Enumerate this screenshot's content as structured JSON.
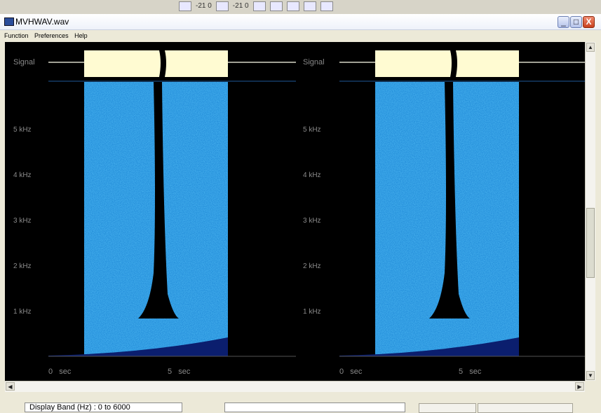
{
  "toolbar": {
    "zoom_a": "-21 0",
    "zoom_b": "-21 0"
  },
  "window": {
    "title": "MVHWAV.wav",
    "minimize_glyph": "_",
    "maximize_glyph": "□",
    "close_glyph": "X"
  },
  "menu": {
    "items": [
      "Function",
      "Preferences",
      "Help"
    ]
  },
  "panels": [
    {
      "signal_label": "Signal",
      "freq_labels": [
        "5 kHz",
        "4 kHz",
        "3 kHz",
        "2 kHz",
        "1 kHz"
      ],
      "time_labels": [
        "0   sec",
        "5   sec"
      ]
    },
    {
      "signal_label": "Signal",
      "freq_labels": [
        "5 kHz",
        "4 kHz",
        "3 kHz",
        "2 kHz",
        "1 kHz"
      ],
      "time_labels": [
        "0   sec",
        "5   sec"
      ]
    }
  ],
  "status": {
    "display_band": "Display Band (Hz) :   0 to 6000",
    "middle_box": "",
    "button_left": "",
    "button_right": ""
  },
  "colors": {
    "spectrogram": "#2a9be0",
    "signal_fill": "#fffbd2",
    "baseline": "#1f5a9a",
    "label_gray": "#8a8a8a"
  }
}
